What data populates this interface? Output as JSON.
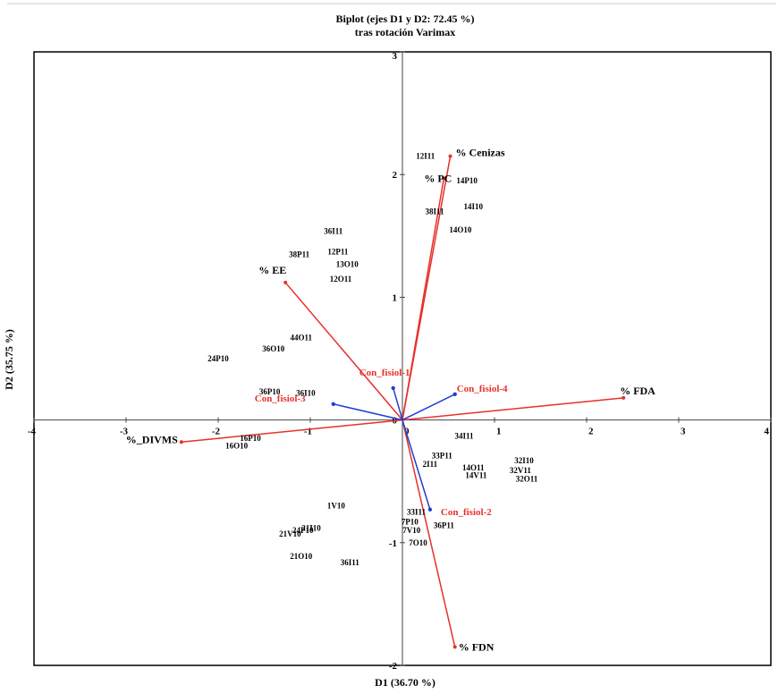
{
  "chart_data": {
    "type": "scatter",
    "title": "Biplot (ejes D1 y D2: 72.45 %)",
    "subtitle": "tras rotación Varimax",
    "xlabel": "D1 (36.70 %)",
    "ylabel": "D2 (35.75 %)",
    "xlim": [
      -4,
      4
    ],
    "ylim": [
      -2,
      3
    ],
    "x_ticks": [
      "-4",
      "-3",
      "-2",
      "-1",
      "0",
      "1",
      "2",
      "3",
      "4"
    ],
    "y_ticks": [
      "-2",
      "-1",
      "0",
      "1",
      "2",
      "3"
    ],
    "colors": {
      "variables": "#e8302a",
      "supplementary": "#1e3fd0",
      "observations": "#000000"
    },
    "observations": [
      {
        "label": "12I11",
        "x": 0.25,
        "y": 2.15
      },
      {
        "label": "14P10",
        "x": 0.7,
        "y": 1.95
      },
      {
        "label": "14I10",
        "x": 0.77,
        "y": 1.74
      },
      {
        "label": "38I11",
        "x": 0.35,
        "y": 1.7
      },
      {
        "label": "14O10",
        "x": 0.63,
        "y": 1.55
      },
      {
        "label": "36I11",
        "x": -0.75,
        "y": 1.54
      },
      {
        "label": "38P11",
        "x": -1.12,
        "y": 1.35
      },
      {
        "label": "12P11",
        "x": -0.7,
        "y": 1.37
      },
      {
        "label": "13O10",
        "x": -0.6,
        "y": 1.27
      },
      {
        "label": "12O11",
        "x": -0.67,
        "y": 1.15
      },
      {
        "label": "44O11",
        "x": -1.1,
        "y": 0.67
      },
      {
        "label": "36O10",
        "x": -1.4,
        "y": 0.58
      },
      {
        "label": "24P10",
        "x": -2.0,
        "y": 0.5
      },
      {
        "label": "36P10",
        "x": -1.44,
        "y": 0.23
      },
      {
        "label": "36I10",
        "x": -1.05,
        "y": 0.22
      },
      {
        "label": "16P10",
        "x": -1.65,
        "y": -0.15
      },
      {
        "label": "16O10",
        "x": -1.8,
        "y": -0.21
      },
      {
        "label": "34I11",
        "x": 0.67,
        "y": -0.13
      },
      {
        "label": "33P11",
        "x": 0.43,
        "y": -0.29
      },
      {
        "label": "2I11",
        "x": 0.3,
        "y": -0.36
      },
      {
        "label": "14O11",
        "x": 0.77,
        "y": -0.39
      },
      {
        "label": "14V11",
        "x": 0.8,
        "y": -0.45
      },
      {
        "label": "32V11",
        "x": 1.28,
        "y": -0.41
      },
      {
        "label": "32I10",
        "x": 1.32,
        "y": -0.33
      },
      {
        "label": "32O11",
        "x": 1.35,
        "y": -0.48
      },
      {
        "label": "1V10",
        "x": -0.72,
        "y": -0.7
      },
      {
        "label": "33I11",
        "x": 0.15,
        "y": -0.75
      },
      {
        "label": "7P10",
        "x": 0.08,
        "y": -0.83
      },
      {
        "label": "36P11",
        "x": 0.45,
        "y": -0.86
      },
      {
        "label": "7V10",
        "x": 0.1,
        "y": -0.9
      },
      {
        "label": "21I10",
        "x": -0.99,
        "y": -0.88
      },
      {
        "label": "24P10",
        "x": -1.08,
        "y": -0.9
      },
      {
        "label": "21V10",
        "x": -1.22,
        "y": -0.93
      },
      {
        "label": "7O10",
        "x": 0.17,
        "y": -1.0
      },
      {
        "label": "21O10",
        "x": -1.1,
        "y": -1.11
      },
      {
        "label": "36I11",
        "x": -0.57,
        "y": -1.16
      }
    ],
    "variables": [
      {
        "name": "% Cenizas",
        "x": 0.52,
        "y": 2.15
      },
      {
        "name": "% PC",
        "x": 0.45,
        "y": 1.97
      },
      {
        "name": "% EE",
        "x": -1.27,
        "y": 1.12
      },
      {
        "name": "% FDA",
        "x": 2.4,
        "y": 0.18
      },
      {
        "name": "%_DIVMS",
        "x": -2.4,
        "y": -0.18
      },
      {
        "name": "% FDN",
        "x": 0.57,
        "y": -1.85
      }
    ],
    "supplementary": [
      {
        "name": "Con_fisiol-1",
        "x": -0.1,
        "y": 0.26
      },
      {
        "name": "Con_fisiol-2",
        "x": 0.3,
        "y": -0.73
      },
      {
        "name": "Con_fisiol-3",
        "x": -0.75,
        "y": 0.13
      },
      {
        "name": "Con_fisiol-4",
        "x": 0.57,
        "y": 0.21
      }
    ]
  }
}
